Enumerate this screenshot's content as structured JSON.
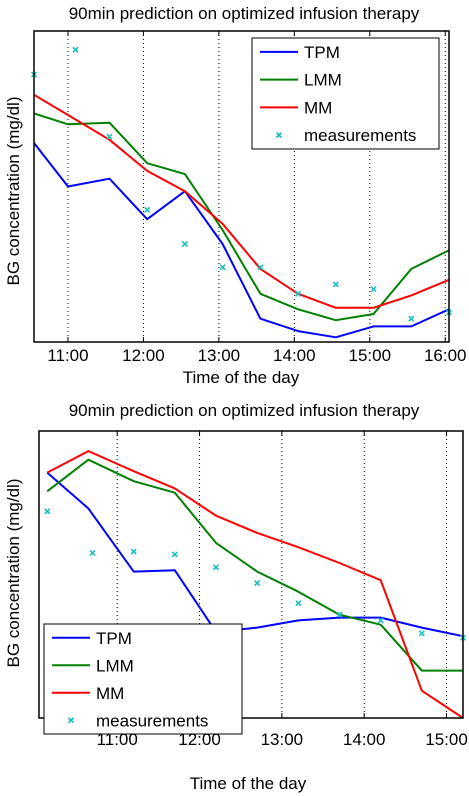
{
  "chart_data": [
    {
      "type": "line",
      "title": "90min prediction on optimized infusion therapy",
      "xlabel": "Time of the day",
      "ylabel": "BG concentration (mg/dl)",
      "xlim": [
        10.55,
        16.05
      ],
      "ylim": [
        0,
        100
      ],
      "xticks": [
        11,
        12,
        13,
        14,
        15,
        16
      ],
      "xticklabels": [
        "11:00",
        "12:00",
        "13:00",
        "14:00",
        "15:00",
        "16:00"
      ],
      "grid": "vertical dotted",
      "legend": "top-right",
      "series": [
        {
          "name": "TPM",
          "color": "#0000ff",
          "x": [
            10.55,
            11.0,
            11.55,
            12.05,
            12.55,
            13.05,
            13.55,
            14.05,
            14.55,
            15.05,
            15.55,
            16.05
          ],
          "y": [
            64,
            50,
            52.5,
            39.5,
            48.5,
            31.5,
            7.5,
            3.5,
            1.5,
            5,
            5,
            10.5
          ]
        },
        {
          "name": "LMM",
          "color": "#008000",
          "x": [
            10.55,
            11.0,
            11.55,
            12.05,
            12.55,
            13.05,
            13.55,
            14.05,
            14.55,
            15.05,
            15.55,
            16.05
          ],
          "y": [
            73.5,
            70,
            70.5,
            57.5,
            54,
            36,
            15.5,
            10.5,
            7,
            9,
            23.5,
            29.5
          ]
        },
        {
          "name": "MM",
          "color": "#ff0000",
          "x": [
            10.55,
            11.0,
            11.55,
            12.05,
            12.55,
            13.05,
            13.55,
            14.05,
            14.55,
            15.05,
            15.55,
            16.05
          ],
          "y": [
            79.5,
            73,
            65,
            55,
            48.5,
            38,
            23.5,
            15.5,
            11,
            11,
            15,
            20
          ]
        },
        {
          "name": "measurements",
          "color": "#17bebe",
          "marker": "x",
          "x": [
            10.55,
            11.1,
            11.55,
            12.05,
            12.55,
            13.05,
            13.55,
            14.05,
            14.55,
            15.05,
            15.55,
            16.05
          ],
          "y": [
            86,
            94,
            66,
            42.5,
            31.5,
            24,
            24,
            15.5,
            18.5,
            17,
            7.5,
            9.5
          ]
        }
      ]
    },
    {
      "type": "line",
      "title": "90min prediction on optimized infusion therapy",
      "xlabel": "Time of the day",
      "ylabel": "BG concentration (mg/dl)",
      "xlim": [
        10.05,
        15.2
      ],
      "ylim": [
        0,
        100
      ],
      "xticks": [
        11,
        12,
        13,
        14,
        15
      ],
      "xticklabels": [
        "11:00",
        "12:00",
        "13:00",
        "14:00",
        "15:00"
      ],
      "grid": "vertical dotted",
      "legend": "bottom-left",
      "series": [
        {
          "name": "TPM",
          "color": "#0000ff",
          "x": [
            10.15,
            10.65,
            11.2,
            11.7,
            12.2,
            12.7,
            13.2,
            13.7,
            14.2,
            14.7,
            15.2
          ],
          "y": [
            85.5,
            73,
            51,
            51.5,
            30,
            31.5,
            34,
            35,
            35,
            31.5,
            28.5
          ]
        },
        {
          "name": "LMM",
          "color": "#008000",
          "x": [
            10.15,
            10.65,
            11.2,
            11.7,
            12.2,
            12.7,
            13.2,
            13.7,
            14.2,
            14.7,
            15.2
          ],
          "y": [
            79,
            90,
            82.5,
            78.5,
            61,
            51,
            44,
            36,
            32.5,
            16.5,
            16.5
          ]
        },
        {
          "name": "MM",
          "color": "#ff0000",
          "x": [
            10.15,
            10.65,
            11.2,
            11.7,
            12.2,
            12.7,
            13.2,
            13.7,
            14.2,
            14.7,
            15.2
          ],
          "y": [
            85.5,
            93,
            86,
            80,
            70.5,
            64.5,
            59.5,
            54,
            48,
            9.5,
            0
          ]
        },
        {
          "name": "measurements",
          "color": "#17bebe",
          "marker": "x",
          "x": [
            10.15,
            10.7,
            11.2,
            11.7,
            12.2,
            12.7,
            13.2,
            13.7,
            14.2,
            14.7,
            15.2
          ],
          "y": [
            72,
            57.5,
            58,
            57,
            52.5,
            47,
            40,
            36,
            34,
            29.5,
            28
          ]
        }
      ]
    }
  ]
}
